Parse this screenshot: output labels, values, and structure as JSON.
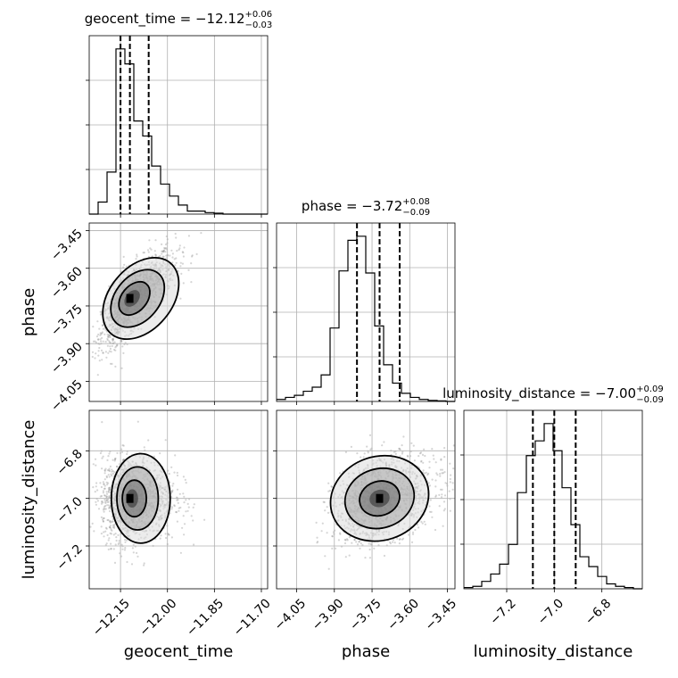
{
  "chart_data": {
    "type": "corner",
    "parameters": [
      {
        "name": "geocent_time",
        "range": [
          -12.25,
          -11.68
        ],
        "ticks": [
          -12.15,
          -12.0,
          -11.85,
          -11.7
        ],
        "tick_labels": [
          "−12.15",
          "−12.00",
          "−11.85",
          "−11.70"
        ],
        "median": -12.12,
        "lower": -12.15,
        "upper": -12.06,
        "title": "geocent_time = −12.12",
        "title_plus": "+0.06",
        "title_minus": "−0.03",
        "hist": [
          0,
          4,
          14,
          55,
          50,
          31,
          26,
          16,
          10,
          6,
          3,
          1,
          1,
          0.5,
          0.3,
          0,
          0,
          0,
          0,
          0
        ]
      },
      {
        "name": "phase",
        "range": [
          -4.13,
          -3.42
        ],
        "ticks": [
          -4.05,
          -3.9,
          -3.75,
          -3.6,
          -3.45
        ],
        "tick_labels": [
          "−4.05",
          "−3.90",
          "−3.75",
          "−3.60",
          "−3.45"
        ],
        "median": -3.72,
        "lower": -3.81,
        "upper": -3.64,
        "title": "phase = −3.72",
        "title_plus": "+0.08",
        "title_minus": "−0.09",
        "hist": [
          1,
          2,
          3,
          5,
          7,
          13,
          36,
          64,
          79,
          81,
          63,
          37,
          18,
          9,
          4,
          2,
          1,
          0.5,
          0.3,
          0
        ]
      },
      {
        "name": "luminosity_distance",
        "range": [
          -7.38,
          -6.63
        ],
        "ticks": [
          -7.2,
          -7.0,
          -6.8
        ],
        "tick_labels": [
          "−7.2",
          "−7.0",
          "−6.8"
        ],
        "median": -7.0,
        "lower": -7.09,
        "upper": -6.91,
        "title": "luminosity_distance = −7.00",
        "title_plus": "+0.09",
        "title_minus": "−0.09",
        "hist": [
          0.5,
          1,
          3,
          6,
          10,
          18,
          39,
          54,
          60,
          67,
          56,
          41,
          26,
          13,
          9,
          5,
          2,
          1,
          0.5,
          0
        ]
      }
    ],
    "axis_labels": [
      "geocent_time",
      "phase",
      "luminosity_distance"
    ],
    "pairs": [
      {
        "x": 0,
        "y": 1,
        "center": [
          -12.12,
          -3.72
        ],
        "sigma": [
          0.045,
          0.09
        ],
        "rho": 0.75
      },
      {
        "x": 0,
        "y": 2,
        "center": [
          -12.12,
          -7.0
        ],
        "sigma": [
          0.045,
          0.09
        ],
        "rho": 0.0
      },
      {
        "x": 1,
        "y": 2,
        "center": [
          -3.72,
          -7.0
        ],
        "sigma": [
          0.09,
          0.09
        ],
        "rho": 0.35
      }
    ],
    "grid": true,
    "quantile_lines": true
  }
}
